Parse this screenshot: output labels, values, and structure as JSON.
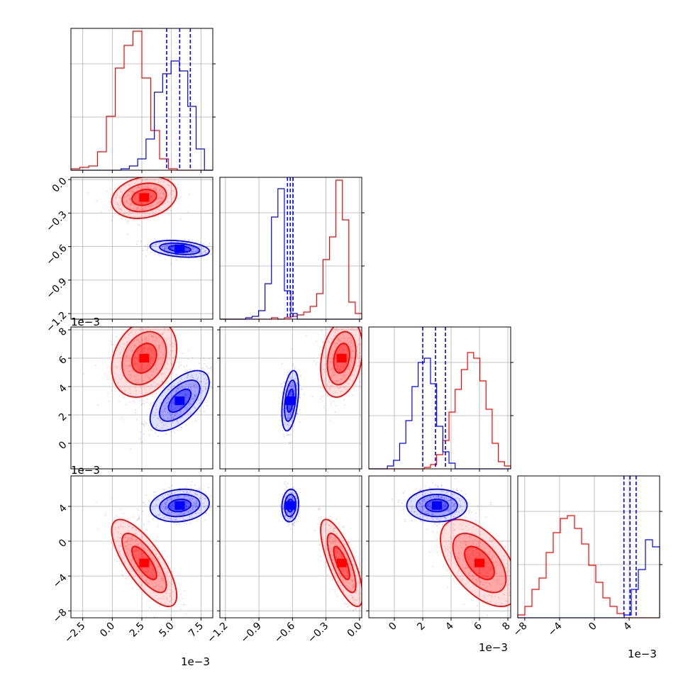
{
  "chart_data": {
    "type": "corner_plot",
    "description_note": "",
    "colors": {
      "red": "#ff0000",
      "blue": "#0000ff",
      "grid": "#b0b0b0",
      "axes": "#000000"
    },
    "offset_label": "1e−3",
    "parameters": [
      {
        "range": [
          -0.0035,
          0.0085
        ],
        "ticks": [
          -0.0025,
          0.0,
          0.0025,
          0.005,
          0.0075
        ],
        "tick_labels": [
          "−2.5",
          "0.0",
          "2.5",
          "5.0",
          "7.5"
        ],
        "unit_offset": "1e−3"
      },
      {
        "range": [
          -1.25,
          0.02
        ],
        "ticks": [
          -1.2,
          -0.9,
          -0.6,
          -0.3,
          0.0
        ],
        "tick_labels": [
          "−1.2",
          "−0.9",
          "−0.6",
          "−0.3",
          "0.0"
        ],
        "unit_offset": ""
      },
      {
        "range": [
          -0.0018,
          0.0082
        ],
        "ticks": [
          0.0,
          0.002,
          0.004,
          0.006,
          0.008
        ],
        "tick_labels": [
          "0",
          "2",
          "4",
          "6",
          "8"
        ],
        "unit_offset": "1e−3"
      },
      {
        "range": [
          -0.0088,
          0.0075
        ],
        "ticks": [
          -0.008,
          -0.004,
          0.0,
          0.004
        ],
        "tick_labels": [
          "−8",
          "−4",
          "0",
          "4"
        ],
        "unit_offset": "1e−3"
      }
    ],
    "series": [
      {
        "color": "red",
        "means": [
          0.0027,
          -0.16,
          0.006,
          -0.0025
        ],
        "sigmas": [
          0.0011,
          0.075,
          0.0011,
          0.002
        ],
        "correlations": {
          "0-1": 0.2,
          "0-2": 0.25,
          "1-2": 0.25,
          "0-3": -0.75,
          "1-3": -0.75,
          "2-3": -0.55
        },
        "hist_heights": [
          [
            0.01,
            0.02,
            0.03,
            0.13,
            0.38,
            0.72,
            0.88,
            0.98,
            0.65,
            0.28,
            0.08,
            0.01,
            0,
            0,
            0,
            0
          ],
          [
            0,
            0,
            0,
            0,
            0,
            0,
            0,
            0,
            0.01,
            0,
            0.01,
            0.02,
            0.03,
            0.05,
            0.09,
            0.18,
            0.42,
            0.58,
            0.98,
            0.7,
            0.12,
            0.04
          ],
          [
            0,
            0,
            0,
            0,
            0,
            0,
            0,
            0,
            0,
            0.01,
            0.03,
            0.1,
            0.2,
            0.4,
            0.56,
            0.7,
            0.82,
            0.78,
            0.62,
            0.42,
            0.18,
            0.05,
            0.02
          ],
          [
            0.02,
            0.08,
            0.2,
            0.28,
            0.46,
            0.6,
            0.7,
            0.72,
            0.63,
            0.52,
            0.37,
            0.25,
            0.14,
            0.08,
            0.03,
            0,
            0,
            0,
            0,
            0
          ]
        ]
      },
      {
        "color": "blue",
        "means": [
          0.0057,
          -0.62,
          0.003,
          0.0041
        ],
        "sigmas": [
          0.001,
          0.03,
          0.00085,
          0.00075
        ],
        "correlations": {
          "0-1": -0.3,
          "0-2": 0.6,
          "1-2": 0.4,
          "0-3": 0.15,
          "1-3": 0.1,
          "2-3": 0.0
        },
        "hist_heights": [
          [
            0,
            0,
            0,
            0,
            0,
            0,
            0.01,
            0.03,
            0.08,
            0.22,
            0.55,
            0.68,
            0.77,
            0.7,
            0.45,
            0.15,
            0
          ],
          [
            0,
            0,
            0,
            0,
            0.01,
            0.02,
            0.06,
            0.25,
            0.72,
            0.92,
            0.2,
            0.04,
            0,
            0,
            0,
            0,
            0,
            0,
            0,
            0,
            0,
            0
          ],
          [
            0,
            0,
            0,
            0.02,
            0.06,
            0.18,
            0.34,
            0.58,
            0.75,
            0.78,
            0.6,
            0.3,
            0.12,
            0.04,
            0,
            0,
            0,
            0,
            0,
            0,
            0,
            0,
            0
          ],
          [
            0,
            0,
            0,
            0,
            0,
            0,
            0,
            0,
            0,
            0,
            0,
            0,
            0,
            0,
            0,
            0.02,
            0.2,
            0.34,
            0.55,
            0.5
          ]
        ],
        "quantile_lines": [
          [
            0.0046,
            0.0057,
            0.0066
          ],
          [
            -0.645,
            -0.62,
            -0.595
          ],
          [
            0.002,
            0.0029,
            0.0036
          ],
          [
            0.0034,
            0.0041,
            0.0048
          ]
        ]
      }
    ],
    "grid": true,
    "contour_levels": 3
  }
}
